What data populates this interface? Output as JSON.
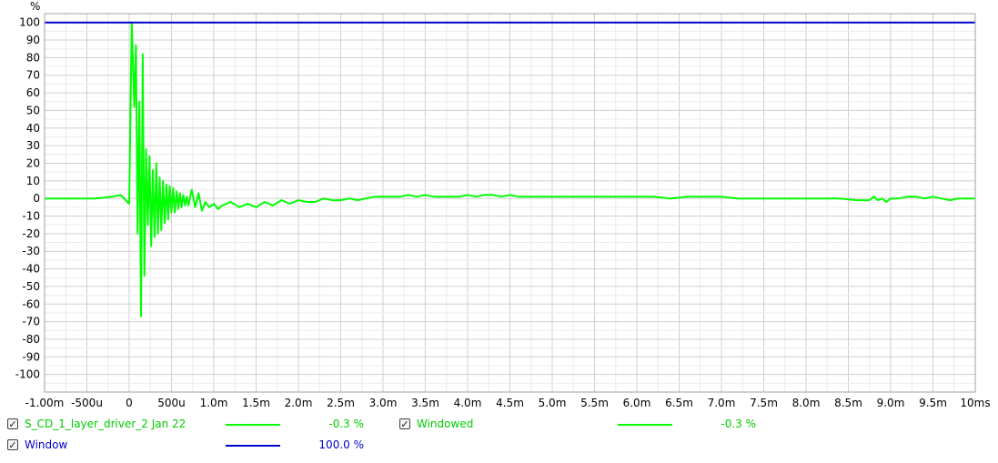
{
  "chart_data": {
    "type": "line",
    "ylabel": "%",
    "xlim": [
      -0.001,
      0.01
    ],
    "ylim": [
      -110,
      105
    ],
    "x_ticks": [
      "-1.00m",
      "-500u",
      "0",
      "500u",
      "1.0m",
      "1.5m",
      "2.0m",
      "2.5m",
      "3.0m",
      "3.5m",
      "4.0m",
      "4.5m",
      "5.0m",
      "5.5m",
      "6.0m",
      "6.5m",
      "7.0m",
      "7.5m",
      "8.0m",
      "8.5m",
      "9.0m",
      "9.5m",
      "10ms"
    ],
    "y_ticks": [
      "100",
      "90",
      "80",
      "70",
      "60",
      "50",
      "40",
      "30",
      "20",
      "10",
      "0",
      "-10",
      "-20",
      "-30",
      "-40",
      "-50",
      "-60",
      "-70",
      "-80",
      "-90",
      "-100"
    ],
    "grid": true,
    "series": [
      {
        "name": "S_CD_1_layer_driver_2 Jan 22",
        "color": "#00ff00",
        "x": [
          -0.001,
          -0.0004,
          -0.0002,
          -0.0001,
          0.0,
          3e-05,
          6e-05,
          8e-05,
          0.0001,
          0.00012,
          0.00014,
          0.00016,
          0.00018,
          0.0002,
          0.00022,
          0.00024,
          0.00026,
          0.00028,
          0.0003,
          0.00032,
          0.00034,
          0.00036,
          0.00038,
          0.0004,
          0.00042,
          0.00044,
          0.00046,
          0.00048,
          0.0005,
          0.00052,
          0.00054,
          0.00056,
          0.00058,
          0.0006,
          0.00062,
          0.00064,
          0.00066,
          0.00068,
          0.0007,
          0.00074,
          0.00078,
          0.00082,
          0.00086,
          0.0009,
          0.00095,
          0.001,
          0.00105,
          0.0011,
          0.0012,
          0.0013,
          0.0014,
          0.0015,
          0.0016,
          0.0017,
          0.0018,
          0.0019,
          0.002,
          0.0021,
          0.0022,
          0.0023,
          0.0024,
          0.0025,
          0.0026,
          0.0027,
          0.0028,
          0.0029,
          0.003,
          0.0031,
          0.0032,
          0.0033,
          0.0034,
          0.0035,
          0.0036,
          0.0037,
          0.0038,
          0.0039,
          0.004,
          0.0041,
          0.0042,
          0.0043,
          0.0044,
          0.0045,
          0.0046,
          0.0047,
          0.0048,
          0.0049,
          0.005,
          0.0052,
          0.0054,
          0.0056,
          0.0058,
          0.006,
          0.0062,
          0.0064,
          0.0066,
          0.0068,
          0.007,
          0.0072,
          0.0074,
          0.0076,
          0.0078,
          0.008,
          0.0082,
          0.0084,
          0.0086,
          0.00875,
          0.0088,
          0.00885,
          0.0089,
          0.00895,
          0.009,
          0.0091,
          0.0092,
          0.0093,
          0.0094,
          0.0095,
          0.0096,
          0.0097,
          0.0098,
          0.0099,
          0.01
        ],
        "y": [
          0,
          0,
          1,
          2,
          -3,
          100,
          52,
          87,
          -20,
          55,
          -67,
          82,
          -44,
          28,
          -15,
          24,
          -27,
          16,
          -22,
          20,
          -20,
          12,
          -18,
          10,
          -14,
          8,
          -12,
          7,
          -8,
          6,
          -8,
          4,
          -6,
          3,
          -5,
          2,
          -4,
          1,
          -4,
          5,
          -5,
          3,
          -7,
          -2,
          -5,
          -3,
          -6,
          -4,
          -2,
          -5,
          -3,
          -5,
          -2,
          -4,
          -1,
          -3,
          -1,
          -2,
          -2,
          0,
          -1,
          -1,
          0,
          -1,
          0,
          1,
          1,
          1,
          1,
          2,
          1,
          2,
          1,
          1,
          1,
          1,
          2,
          1,
          2,
          2,
          1,
          2,
          1,
          1,
          1,
          1,
          1,
          1,
          1,
          1,
          1,
          1,
          1,
          0,
          1,
          1,
          1,
          0,
          0,
          0,
          0,
          0,
          0,
          0,
          -1,
          -1,
          1,
          -1,
          0,
          -2,
          0,
          0,
          1,
          1,
          0,
          1,
          0,
          -1,
          0,
          0,
          0
        ],
        "legend_value": "-0.3 %"
      },
      {
        "name": "Windowed",
        "color": "#00ff00",
        "legend_value": "-0.3 %"
      },
      {
        "name": "Window",
        "color": "#0000cc",
        "x": [
          -0.001,
          0.01
        ],
        "y": [
          100,
          100
        ],
        "legend_value": "100.0 %"
      }
    ]
  },
  "legend": {
    "checked_mark": "✓"
  }
}
